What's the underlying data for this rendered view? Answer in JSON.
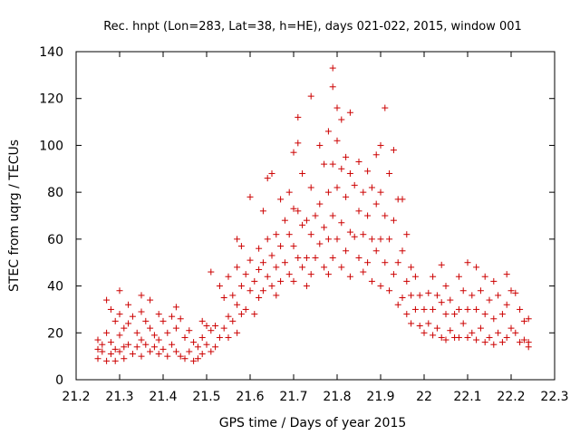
{
  "chart_data": {
    "type": "scatter",
    "title": "Rec. hnpt (Lon=283, Lat=38, h=HE), days 021-022, 2015, window 001",
    "xlabel": "GPS time / Days of year 2015",
    "ylabel": "STEC from uqrg / TECUs",
    "xlim": [
      21.2,
      22.3
    ],
    "ylim": [
      0,
      140
    ],
    "xticks": [
      21.2,
      21.3,
      21.4,
      21.5,
      21.6,
      21.7,
      21.8,
      21.9,
      22.0,
      22.1,
      22.2,
      22.3
    ],
    "xtick_labels": [
      "21.2",
      "21.3",
      "21.4",
      "21.5",
      "21.6",
      "21.7",
      "21.8",
      "21.9",
      "22",
      "22.1",
      "22.2",
      "22.3"
    ],
    "yticks": [
      0,
      20,
      40,
      60,
      80,
      100,
      120,
      140
    ],
    "ytick_labels": [
      "0",
      "20",
      "40",
      "60",
      "80",
      "100",
      "120",
      "140"
    ],
    "marker": "+",
    "color": "#cc0000",
    "series": [
      {
        "name": "STEC",
        "points": [
          [
            21.25,
            17
          ],
          [
            21.25,
            13
          ],
          [
            21.25,
            9
          ],
          [
            21.26,
            15
          ],
          [
            21.26,
            12
          ],
          [
            21.27,
            34
          ],
          [
            21.27,
            20
          ],
          [
            21.27,
            8
          ],
          [
            21.28,
            30
          ],
          [
            21.28,
            16
          ],
          [
            21.28,
            11
          ],
          [
            21.29,
            25
          ],
          [
            21.29,
            13
          ],
          [
            21.29,
            8
          ],
          [
            21.3,
            38
          ],
          [
            21.3,
            28
          ],
          [
            21.3,
            19
          ],
          [
            21.3,
            12
          ],
          [
            21.31,
            22
          ],
          [
            21.31,
            14
          ],
          [
            21.31,
            9
          ],
          [
            21.32,
            32
          ],
          [
            21.32,
            24
          ],
          [
            21.32,
            15
          ],
          [
            21.33,
            27
          ],
          [
            21.33,
            11
          ],
          [
            21.34,
            20
          ],
          [
            21.34,
            14
          ],
          [
            21.35,
            36
          ],
          [
            21.35,
            29
          ],
          [
            21.35,
            17
          ],
          [
            21.35,
            10
          ],
          [
            21.36,
            25
          ],
          [
            21.36,
            15
          ],
          [
            21.37,
            34
          ],
          [
            21.37,
            22
          ],
          [
            21.37,
            12
          ],
          [
            21.38,
            19
          ],
          [
            21.38,
            14
          ],
          [
            21.39,
            28
          ],
          [
            21.39,
            17
          ],
          [
            21.39,
            11
          ],
          [
            21.4,
            25
          ],
          [
            21.4,
            13
          ],
          [
            21.41,
            20
          ],
          [
            21.41,
            10
          ],
          [
            21.42,
            27
          ],
          [
            21.42,
            15
          ],
          [
            21.43,
            31
          ],
          [
            21.43,
            22
          ],
          [
            21.43,
            12
          ],
          [
            21.44,
            26
          ],
          [
            21.44,
            10
          ],
          [
            21.45,
            18
          ],
          [
            21.45,
            9
          ],
          [
            21.46,
            21
          ],
          [
            21.46,
            12
          ],
          [
            21.47,
            16
          ],
          [
            21.47,
            8
          ],
          [
            21.48,
            14
          ],
          [
            21.48,
            9
          ],
          [
            21.49,
            25
          ],
          [
            21.49,
            18
          ],
          [
            21.49,
            11
          ],
          [
            21.5,
            23
          ],
          [
            21.5,
            15
          ],
          [
            21.51,
            46
          ],
          [
            21.51,
            21
          ],
          [
            21.51,
            12
          ],
          [
            21.52,
            23
          ],
          [
            21.52,
            14
          ],
          [
            21.53,
            40
          ],
          [
            21.53,
            18
          ],
          [
            21.54,
            35
          ],
          [
            21.54,
            22
          ],
          [
            21.55,
            44
          ],
          [
            21.55,
            27
          ],
          [
            21.55,
            18
          ],
          [
            21.56,
            36
          ],
          [
            21.56,
            25
          ],
          [
            21.57,
            60
          ],
          [
            21.57,
            48
          ],
          [
            21.57,
            32
          ],
          [
            21.57,
            20
          ],
          [
            21.58,
            57
          ],
          [
            21.58,
            40
          ],
          [
            21.58,
            28
          ],
          [
            21.59,
            45
          ],
          [
            21.59,
            30
          ],
          [
            21.6,
            78
          ],
          [
            21.6,
            51
          ],
          [
            21.6,
            38
          ],
          [
            21.61,
            42
          ],
          [
            21.61,
            28
          ],
          [
            21.62,
            56
          ],
          [
            21.62,
            47
          ],
          [
            21.62,
            35
          ],
          [
            21.63,
            72
          ],
          [
            21.63,
            50
          ],
          [
            21.63,
            38
          ],
          [
            21.64,
            86
          ],
          [
            21.64,
            60
          ],
          [
            21.64,
            44
          ],
          [
            21.65,
            88
          ],
          [
            21.65,
            53
          ],
          [
            21.65,
            40
          ],
          [
            21.66,
            62
          ],
          [
            21.66,
            48
          ],
          [
            21.66,
            36
          ],
          [
            21.67,
            77
          ],
          [
            21.67,
            57
          ],
          [
            21.67,
            42
          ],
          [
            21.68,
            68
          ],
          [
            21.68,
            50
          ],
          [
            21.69,
            80
          ],
          [
            21.69,
            62
          ],
          [
            21.69,
            45
          ],
          [
            21.7,
            97
          ],
          [
            21.7,
            73
          ],
          [
            21.7,
            57
          ],
          [
            21.7,
            42
          ],
          [
            21.71,
            112
          ],
          [
            21.71,
            101
          ],
          [
            21.71,
            72
          ],
          [
            21.71,
            52
          ],
          [
            21.72,
            88
          ],
          [
            21.72,
            66
          ],
          [
            21.72,
            48
          ],
          [
            21.73,
            68
          ],
          [
            21.73,
            52
          ],
          [
            21.73,
            40
          ],
          [
            21.74,
            121
          ],
          [
            21.74,
            82
          ],
          [
            21.74,
            62
          ],
          [
            21.74,
            45
          ],
          [
            21.75,
            70
          ],
          [
            21.75,
            52
          ],
          [
            21.76,
            100
          ],
          [
            21.76,
            75
          ],
          [
            21.76,
            58
          ],
          [
            21.77,
            92
          ],
          [
            21.77,
            65
          ],
          [
            21.77,
            48
          ],
          [
            21.78,
            106
          ],
          [
            21.78,
            80
          ],
          [
            21.78,
            60
          ],
          [
            21.78,
            45
          ],
          [
            21.79,
            133
          ],
          [
            21.79,
            125
          ],
          [
            21.79,
            92
          ],
          [
            21.79,
            70
          ],
          [
            21.79,
            52
          ],
          [
            21.8,
            116
          ],
          [
            21.8,
            102
          ],
          [
            21.8,
            82
          ],
          [
            21.8,
            60
          ],
          [
            21.81,
            111
          ],
          [
            21.81,
            90
          ],
          [
            21.81,
            67
          ],
          [
            21.81,
            48
          ],
          [
            21.82,
            95
          ],
          [
            21.82,
            78
          ],
          [
            21.82,
            55
          ],
          [
            21.83,
            114
          ],
          [
            21.83,
            88
          ],
          [
            21.83,
            63
          ],
          [
            21.83,
            44
          ],
          [
            21.84,
            83
          ],
          [
            21.84,
            61
          ],
          [
            21.85,
            93
          ],
          [
            21.85,
            72
          ],
          [
            21.85,
            52
          ],
          [
            21.86,
            80
          ],
          [
            21.86,
            62
          ],
          [
            21.86,
            46
          ],
          [
            21.87,
            89
          ],
          [
            21.87,
            70
          ],
          [
            21.87,
            50
          ],
          [
            21.88,
            82
          ],
          [
            21.88,
            60
          ],
          [
            21.88,
            42
          ],
          [
            21.89,
            96
          ],
          [
            21.89,
            75
          ],
          [
            21.89,
            55
          ],
          [
            21.9,
            100
          ],
          [
            21.9,
            80
          ],
          [
            21.9,
            60
          ],
          [
            21.9,
            40
          ],
          [
            21.91,
            116
          ],
          [
            21.91,
            70
          ],
          [
            21.91,
            50
          ],
          [
            21.92,
            88
          ],
          [
            21.92,
            60
          ],
          [
            21.92,
            38
          ],
          [
            21.93,
            98
          ],
          [
            21.93,
            68
          ],
          [
            21.93,
            45
          ],
          [
            21.94,
            77
          ],
          [
            21.94,
            50
          ],
          [
            21.94,
            32
          ],
          [
            21.95,
            77
          ],
          [
            21.95,
            55
          ],
          [
            21.95,
            35
          ],
          [
            21.96,
            62
          ],
          [
            21.96,
            42
          ],
          [
            21.96,
            28
          ],
          [
            21.97,
            48
          ],
          [
            21.97,
            36
          ],
          [
            21.97,
            24
          ],
          [
            21.98,
            44
          ],
          [
            21.98,
            30
          ],
          [
            21.99,
            36
          ],
          [
            21.99,
            23
          ],
          [
            22.0,
            30
          ],
          [
            22.0,
            20
          ],
          [
            22.01,
            37
          ],
          [
            22.01,
            24
          ],
          [
            22.02,
            44
          ],
          [
            22.02,
            30
          ],
          [
            22.02,
            19
          ],
          [
            22.03,
            36
          ],
          [
            22.03,
            22
          ],
          [
            22.04,
            49
          ],
          [
            22.04,
            33
          ],
          [
            22.04,
            18
          ],
          [
            22.05,
            40
          ],
          [
            22.05,
            28
          ],
          [
            22.05,
            17
          ],
          [
            22.06,
            34
          ],
          [
            22.06,
            21
          ],
          [
            22.07,
            28
          ],
          [
            22.07,
            18
          ],
          [
            22.08,
            44
          ],
          [
            22.08,
            30
          ],
          [
            22.08,
            18
          ],
          [
            22.09,
            38
          ],
          [
            22.09,
            24
          ],
          [
            22.1,
            50
          ],
          [
            22.1,
            30
          ],
          [
            22.1,
            18
          ],
          [
            22.11,
            36
          ],
          [
            22.11,
            20
          ],
          [
            22.12,
            48
          ],
          [
            22.12,
            30
          ],
          [
            22.12,
            17
          ],
          [
            22.13,
            38
          ],
          [
            22.13,
            22
          ],
          [
            22.14,
            44
          ],
          [
            22.14,
            28
          ],
          [
            22.14,
            16
          ],
          [
            22.15,
            34
          ],
          [
            22.15,
            18
          ],
          [
            22.16,
            42
          ],
          [
            22.16,
            26
          ],
          [
            22.16,
            15
          ],
          [
            22.17,
            36
          ],
          [
            22.17,
            20
          ],
          [
            22.18,
            28
          ],
          [
            22.18,
            16
          ],
          [
            22.19,
            45
          ],
          [
            22.19,
            32
          ],
          [
            22.19,
            18
          ],
          [
            22.2,
            38
          ],
          [
            22.2,
            22
          ],
          [
            22.21,
            37
          ],
          [
            22.21,
            20
          ],
          [
            22.22,
            30
          ],
          [
            22.22,
            16
          ],
          [
            22.23,
            25
          ],
          [
            22.23,
            17
          ],
          [
            22.24,
            26
          ],
          [
            22.24,
            16
          ],
          [
            22.24,
            14
          ]
        ]
      }
    ]
  }
}
